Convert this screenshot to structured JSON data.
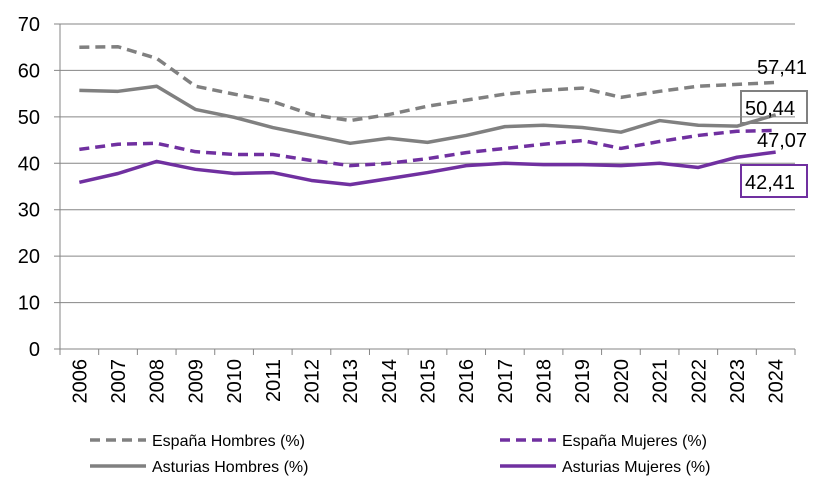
{
  "chart_data": {
    "type": "line",
    "categories": [
      "2006",
      "2007",
      "2008",
      "2009",
      "2010",
      "2011",
      "2012",
      "2013",
      "2014",
      "2015",
      "2016",
      "2017",
      "2018",
      "2019",
      "2020",
      "2021",
      "2022",
      "2023",
      "2024"
    ],
    "ylim": [
      0,
      70
    ],
    "yticks": [
      "0",
      "10",
      "20",
      "30",
      "40",
      "50",
      "60",
      "70"
    ],
    "grid": true,
    "legend_position": "bottom",
    "series": [
      {
        "name": "España Hombres (%)",
        "color": "#808080",
        "dash": true,
        "values": [
          65.0,
          65.1,
          62.6,
          56.6,
          54.9,
          53.3,
          50.5,
          49.2,
          50.5,
          52.3,
          53.6,
          54.9,
          55.7,
          56.2,
          54.2,
          55.5,
          56.6,
          57.0,
          57.41
        ],
        "end_label": "57,41",
        "boxed": false
      },
      {
        "name": "España Mujeres (%)",
        "color": "#7030A0",
        "dash": true,
        "values": [
          43.0,
          44.1,
          44.3,
          42.5,
          41.9,
          41.9,
          40.6,
          39.5,
          40.0,
          41.0,
          42.3,
          43.2,
          44.1,
          44.9,
          43.2,
          44.7,
          46.0,
          46.9,
          47.07
        ],
        "end_label": "47,07",
        "boxed": false
      },
      {
        "name": "Asturias Hombres (%)",
        "color": "#808080",
        "dash": false,
        "values": [
          55.7,
          55.5,
          56.6,
          51.6,
          49.9,
          47.7,
          46.0,
          44.3,
          45.4,
          44.5,
          46.0,
          47.9,
          48.2,
          47.7,
          46.7,
          49.2,
          48.2,
          48.0,
          50.44
        ],
        "end_label": "50,44",
        "boxed": true
      },
      {
        "name": "Asturias Mujeres (%)",
        "color": "#7030A0",
        "dash": false,
        "values": [
          35.9,
          37.8,
          40.4,
          38.7,
          37.8,
          38.0,
          36.3,
          35.4,
          36.7,
          38.0,
          39.5,
          40.0,
          39.7,
          39.7,
          39.5,
          40.0,
          39.1,
          41.3,
          42.41
        ],
        "end_label": "42,41",
        "boxed": true
      }
    ]
  }
}
